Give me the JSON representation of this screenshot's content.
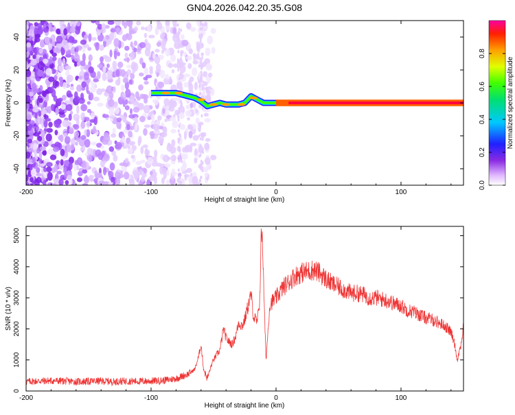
{
  "page": {
    "title": "GN04.2026.042.20.35.G08"
  },
  "colors": {
    "snr_line": "#ee3333",
    "axis": "#000000",
    "background": "#ffffff"
  },
  "chart_data": [
    {
      "type": "heatmap",
      "xlabel": "Height of straight line (km)",
      "ylabel": "Frequency (Hz)",
      "xlim": [
        -200,
        150
      ],
      "ylim": [
        -50,
        50
      ],
      "x_ticks": [
        -200,
        -100,
        0,
        100
      ],
      "y_ticks": [
        -40,
        -20,
        0,
        20,
        40
      ],
      "colorbar": {
        "label": "Normalized spectral amplitude",
        "range": [
          0,
          1
        ],
        "ticks": [
          0.0,
          0.2,
          0.4,
          0.6,
          0.8
        ],
        "tick_labels": [
          "0.0",
          "0.2",
          "0.4",
          "0.6",
          "0.8"
        ]
      },
      "ridge": [
        {
          "x": -100,
          "f": 6
        },
        {
          "x": -90,
          "f": 6
        },
        {
          "x": -80,
          "f": 6
        },
        {
          "x": -70,
          "f": 4
        },
        {
          "x": -65,
          "f": 3
        },
        {
          "x": -60,
          "f": 1
        },
        {
          "x": -55,
          "f": -2
        },
        {
          "x": -50,
          "f": -1
        },
        {
          "x": -45,
          "f": 0
        },
        {
          "x": -40,
          "f": -1
        },
        {
          "x": -35,
          "f": -1
        },
        {
          "x": -30,
          "f": -1
        },
        {
          "x": -25,
          "f": 0
        },
        {
          "x": -20,
          "f": 4
        },
        {
          "x": -15,
          "f": 2
        },
        {
          "x": -10,
          "f": 0
        },
        {
          "x": 0,
          "f": 0
        },
        {
          "x": 50,
          "f": 0
        },
        {
          "x": 100,
          "f": 0
        },
        {
          "x": 150,
          "f": 0
        }
      ]
    },
    {
      "type": "line",
      "xlabel": "Height of straight line (km)",
      "ylabel": "SNR (10 * v/v)",
      "xlim": [
        -200,
        150
      ],
      "ylim": [
        0,
        5300
      ],
      "x_ticks": [
        -200,
        -100,
        0,
        100
      ],
      "y_ticks": [
        0,
        1000,
        2000,
        3000,
        4000,
        5000
      ],
      "series": [
        {
          "x": [
            -200,
            -190,
            -180,
            -170,
            -160,
            -150,
            -140,
            -130,
            -120,
            -110,
            -100,
            -90,
            -80,
            -75,
            -70,
            -65,
            -62,
            -60,
            -58,
            -55,
            -52,
            -50,
            -47,
            -45,
            -42,
            -40,
            -38,
            -35,
            -32,
            -30,
            -27,
            -25,
            -22,
            -20,
            -18,
            -15,
            -13,
            -12,
            -11,
            -10,
            -9,
            -8,
            -5,
            0,
            5,
            10,
            15,
            20,
            25,
            30,
            35,
            40,
            45,
            50,
            55,
            60,
            65,
            70,
            75,
            80,
            85,
            90,
            95,
            100,
            105,
            110,
            115,
            120,
            125,
            130,
            135,
            140,
            143,
            145,
            148,
            150
          ],
          "y": [
            300,
            320,
            330,
            320,
            300,
            310,
            320,
            300,
            320,
            310,
            320,
            340,
            400,
            480,
            550,
            700,
            1100,
            1500,
            700,
            400,
            800,
            1000,
            1200,
            1300,
            2000,
            1700,
            1600,
            1500,
            1800,
            2200,
            2100,
            2300,
            2800,
            3100,
            2400,
            2200,
            3000,
            4800,
            5200,
            3500,
            2200,
            1000,
            2800,
            3000,
            3300,
            3500,
            3700,
            3800,
            3850,
            3900,
            3800,
            3600,
            3450,
            3350,
            3250,
            3150,
            3150,
            3100,
            3000,
            3000,
            2950,
            2900,
            2800,
            2750,
            2600,
            2550,
            2450,
            2350,
            2300,
            2200,
            2100,
            1900,
            1500,
            1000,
            1500,
            2100
          ]
        }
      ]
    }
  ]
}
